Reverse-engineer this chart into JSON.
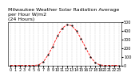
{
  "title": "Milwaukee Weather Solar Radiation Average\nper Hour W/m2\n(24 Hours)",
  "hours": [
    0,
    1,
    2,
    3,
    4,
    5,
    6,
    7,
    8,
    9,
    10,
    11,
    12,
    13,
    14,
    15,
    16,
    17,
    18,
    19,
    20,
    21,
    22,
    23
  ],
  "values": [
    0,
    0,
    0,
    0,
    0,
    0,
    5,
    40,
    120,
    220,
    340,
    430,
    470,
    460,
    400,
    310,
    200,
    100,
    30,
    5,
    0,
    0,
    0,
    0
  ],
  "line_color": "red",
  "line_style": "--",
  "marker": ".",
  "marker_color": "black",
  "ylim": [
    0,
    500
  ],
  "xlim": [
    -0.5,
    23.5
  ],
  "yticks": [
    0,
    100,
    200,
    300,
    400,
    500
  ],
  "xticks": [
    0,
    1,
    2,
    3,
    4,
    5,
    6,
    7,
    8,
    9,
    10,
    11,
    12,
    13,
    14,
    15,
    16,
    17,
    18,
    19,
    20,
    21,
    22,
    23
  ],
  "grid_color": "#aaaaaa",
  "bg_color": "#ffffff",
  "title_fontsize": 4.5,
  "tick_fontsize": 3.5
}
